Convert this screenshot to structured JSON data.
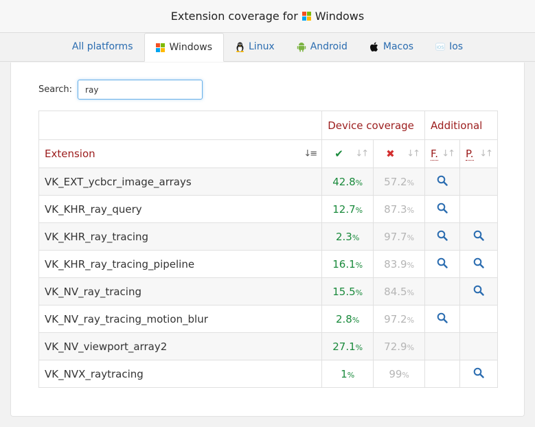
{
  "header": {
    "title_prefix": "Extension coverage for",
    "platform": "Windows"
  },
  "tabs": [
    {
      "label": "All platforms",
      "icon": "none"
    },
    {
      "label": "Windows",
      "icon": "windows-icon"
    },
    {
      "label": "Linux",
      "icon": "linux-icon"
    },
    {
      "label": "Android",
      "icon": "android-icon"
    },
    {
      "label": "Macos",
      "icon": "apple-icon"
    },
    {
      "label": "Ios",
      "icon": "ios-icon"
    }
  ],
  "search": {
    "label": "Search:",
    "value": "ray"
  },
  "table": {
    "group_device": "Device coverage",
    "group_additional": "Additional",
    "col_extension": "Extension",
    "col_features": "F.",
    "col_properties": "P.",
    "pct_symbol": "%",
    "rows": [
      {
        "name": "VK_EXT_ycbcr_image_arrays",
        "supported": "42.8",
        "unsupported": "57.2",
        "features": true,
        "properties": false
      },
      {
        "name": "VK_KHR_ray_query",
        "supported": "12.7",
        "unsupported": "87.3",
        "features": true,
        "properties": false
      },
      {
        "name": "VK_KHR_ray_tracing",
        "supported": "2.3",
        "unsupported": "97.7",
        "features": true,
        "properties": true
      },
      {
        "name": "VK_KHR_ray_tracing_pipeline",
        "supported": "16.1",
        "unsupported": "83.9",
        "features": true,
        "properties": true
      },
      {
        "name": "VK_NV_ray_tracing",
        "supported": "15.5",
        "unsupported": "84.5",
        "features": false,
        "properties": true
      },
      {
        "name": "VK_NV_ray_tracing_motion_blur",
        "supported": "2.8",
        "unsupported": "97.2",
        "features": true,
        "properties": false
      },
      {
        "name": "VK_NV_viewport_array2",
        "supported": "27.1",
        "unsupported": "72.9",
        "features": false,
        "properties": false
      },
      {
        "name": "VK_NVX_raytracing",
        "supported": "1",
        "unsupported": "99",
        "features": false,
        "properties": true
      }
    ]
  },
  "colors": {
    "accent_red": "#9b1c1c",
    "supported_green": "#1a8a3c",
    "link_blue": "#2a6cb0"
  }
}
